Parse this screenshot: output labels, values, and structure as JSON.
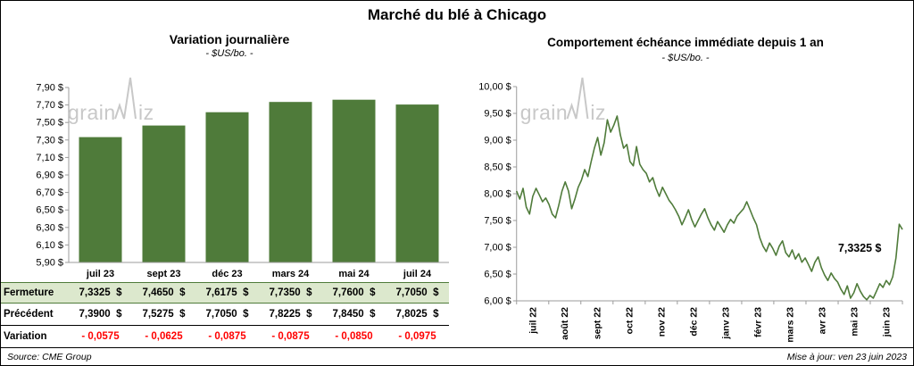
{
  "page_title": "Marché du blé à Chicago",
  "watermark_text": "grainwiz",
  "colors": {
    "green": "#4f7b3a",
    "table_row_bg": "#dce8cd",
    "negative_red": "#ff0000",
    "watermark_gray": "#c8c8c8",
    "axis_gray": "#9b9b9b"
  },
  "footer": {
    "source": "Source: CME Group",
    "updated": "Mise à jour: ven 23 juin 2023"
  },
  "chart_data": [
    {
      "type": "bar",
      "title": "Variation journalière",
      "subtitle": "- $US/bo. -",
      "ylim": [
        5.9,
        7.9
      ],
      "ytick_step": 0.2,
      "grid": false,
      "ytick_labels": [
        "7,90 $",
        "7,70 $",
        "7,50 $",
        "7,30 $",
        "7,10 $",
        "6,90 $",
        "6,70 $",
        "6,50 $",
        "6,30 $",
        "6,10 $",
        "5,90 $"
      ],
      "categories": [
        "juil 23",
        "sept 23",
        "déc 23",
        "mars 24",
        "mai 24",
        "juil 24"
      ],
      "values": [
        7.3325,
        7.465,
        7.6175,
        7.735,
        7.76,
        7.705
      ]
    },
    {
      "type": "line",
      "title": "Comportement échéance immédiate depuis 1 an",
      "subtitle": "- $US/bo. -",
      "ylim": [
        6.0,
        10.0
      ],
      "ytick_step": 0.5,
      "grid": false,
      "ytick_labels": [
        "10,00 $",
        "9,50 $",
        "9,00 $",
        "8,50 $",
        "8,00 $",
        "7,50 $",
        "7,00 $",
        "6,50 $",
        "6,00 $"
      ],
      "x_labels": [
        "juil 22",
        "août 22",
        "sept 22",
        "oct 22",
        "nov 22",
        "déc 22",
        "janv 23",
        "févr 23",
        "mars 23",
        "avr 23",
        "mai 23",
        "juin 23"
      ],
      "annotation": {
        "text": "7,3325 $",
        "value": 7.3325
      },
      "series": [
        8.05,
        7.9,
        8.1,
        7.75,
        7.62,
        7.95,
        8.1,
        7.98,
        7.85,
        7.92,
        7.8,
        7.62,
        7.55,
        7.78,
        8.05,
        8.22,
        8.05,
        7.72,
        7.9,
        8.12,
        8.25,
        8.45,
        8.32,
        8.6,
        8.85,
        9.05,
        8.72,
        8.95,
        9.38,
        9.15,
        9.28,
        9.45,
        9.1,
        8.85,
        8.92,
        8.6,
        8.52,
        8.88,
        8.55,
        8.45,
        8.38,
        8.22,
        8.3,
        8.1,
        7.95,
        8.12,
        8.0,
        7.88,
        7.8,
        7.7,
        7.58,
        7.42,
        7.55,
        7.7,
        7.52,
        7.38,
        7.5,
        7.62,
        7.72,
        7.55,
        7.42,
        7.32,
        7.48,
        7.38,
        7.28,
        7.42,
        7.52,
        7.45,
        7.58,
        7.65,
        7.72,
        7.85,
        7.7,
        7.55,
        7.42,
        7.18,
        7.02,
        6.92,
        7.08,
        6.98,
        6.85,
        7.02,
        7.12,
        6.9,
        6.82,
        6.95,
        6.78,
        6.88,
        6.72,
        6.8,
        6.68,
        6.55,
        6.72,
        6.82,
        6.62,
        6.48,
        6.38,
        6.52,
        6.42,
        6.35,
        6.22,
        6.12,
        6.28,
        6.05,
        6.15,
        6.32,
        6.18,
        6.08,
        6.02,
        6.1,
        6.05,
        6.18,
        6.32,
        6.25,
        6.38,
        6.3,
        6.45,
        6.8,
        7.43,
        7.3325
      ]
    }
  ],
  "table": {
    "rows": [
      {
        "label": "Fermeture",
        "style": "close",
        "values": [
          "7,3325  $",
          "7,4650  $",
          "7,6175  $",
          "7,7350  $",
          "7,7600  $",
          "7,7050  $"
        ]
      },
      {
        "label": "Précédent",
        "style": "previous",
        "values": [
          "7,3900  $",
          "7,5275  $",
          "7,7050  $",
          "7,8225  $",
          "7,8450  $",
          "7,8025  $"
        ]
      },
      {
        "label": "Variation",
        "style": "variation",
        "values": [
          "- 0,0575",
          "- 0,0625",
          "- 0,0875",
          "- 0,0875",
          "- 0,0850",
          "- 0,0975"
        ]
      }
    ]
  }
}
